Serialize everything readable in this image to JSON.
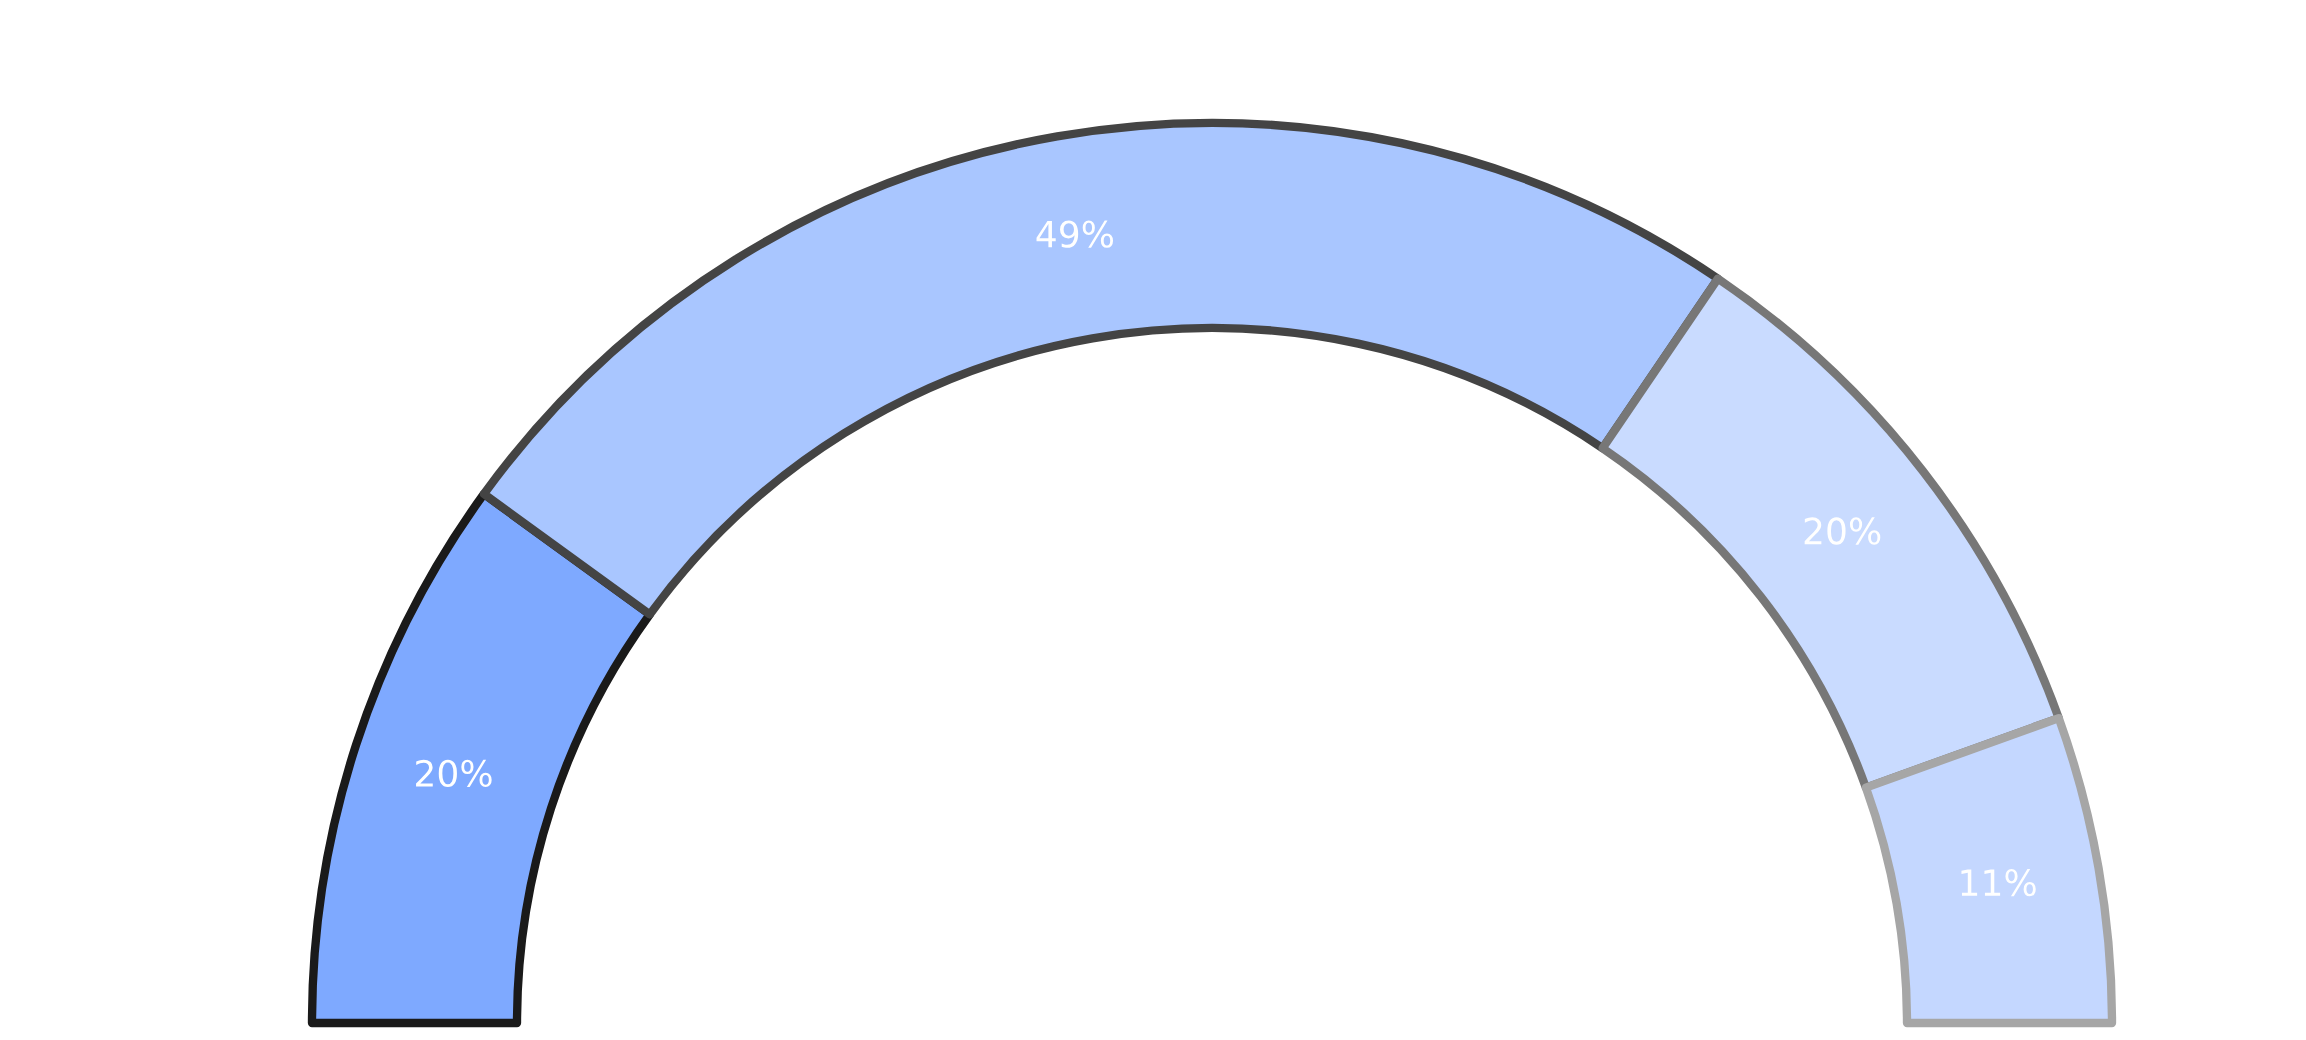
{
  "chart_data": {
    "type": "donut",
    "categories": [
      null,
      null,
      null,
      null
    ],
    "values": [
      20,
      49,
      20,
      11
    ],
    "colors": [
      "#7ea9ff",
      "#a9c6ff",
      "#c9dbff",
      "#c4d7ff"
    ],
    "value_labels": [
      "20%",
      "49%",
      "20%",
      "11%"
    ]
  }
}
